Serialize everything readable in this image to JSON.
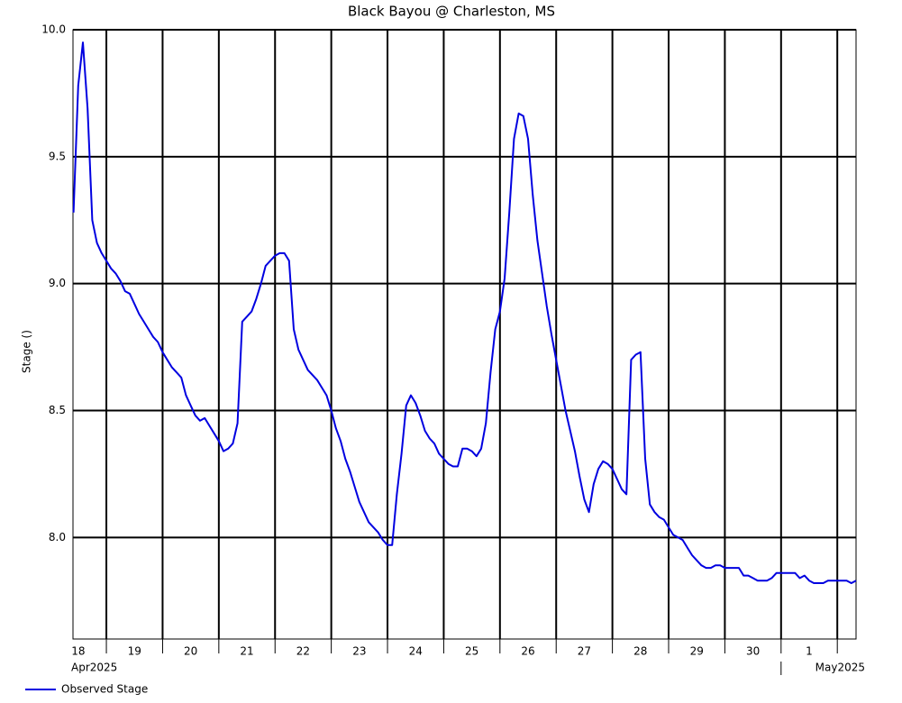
{
  "chart_data": {
    "type": "line",
    "title": "Black Bayou @ Charleston, MS",
    "y_label": "Stage ()",
    "xlim": [
      "2025-04-18T09:45",
      "2025-05-02T08:00"
    ],
    "ylim": [
      7.6,
      10.0
    ],
    "yticks": [
      {
        "value": 8.0,
        "label": "8.0"
      },
      8.5,
      {
        "value": 9.0,
        "label": "9.0"
      },
      9.5,
      {
        "value": 10.0,
        "label": "10.0"
      }
    ],
    "xgrid": [
      "2025-04-19T00:00",
      "2025-04-20T00:00",
      "2025-04-21T00:00",
      "2025-04-22T00:00",
      "2025-04-23T00:00",
      "2025-04-24T00:00",
      "2025-04-25T00:00",
      "2025-04-26T00:00",
      "2025-04-27T00:00",
      "2025-04-28T00:00",
      "2025-04-29T00:00",
      "2025-04-30T00:00",
      "2025-05-01T00:00",
      "2025-05-02T00:00"
    ],
    "xticks": [
      {
        "value": "2025-04-18T12:00",
        "label": "18"
      },
      {
        "value": "2025-04-19T12:00",
        "label": "19"
      },
      {
        "value": "2025-04-20T12:00",
        "label": "20"
      },
      {
        "value": "2025-04-21T12:00",
        "label": "21"
      },
      {
        "value": "2025-04-22T12:00",
        "label": "22"
      },
      {
        "value": "2025-04-23T12:00",
        "label": "23"
      },
      {
        "value": "2025-04-24T12:00",
        "label": "24"
      },
      {
        "value": "2025-04-25T12:00",
        "label": "25"
      },
      {
        "value": "2025-04-26T12:00",
        "label": "26"
      },
      {
        "value": "2025-04-27T12:00",
        "label": "27"
      },
      {
        "value": "2025-04-28T12:00",
        "label": "28"
      },
      {
        "value": "2025-04-29T12:00",
        "label": "29"
      },
      {
        "value": "2025-04-30T12:00",
        "label": "30"
      },
      {
        "value": "2025-05-01T12:00",
        "label": "1"
      }
    ],
    "month_ticks": [
      {
        "value": "2025-04-18T09:45",
        "label": "Apr2025"
      },
      {
        "value": "2025-05-01T00:00",
        "label": "May2025"
      }
    ],
    "grid": true,
    "legend": "bottom-left",
    "x": [
      "2025-04-18T10:00",
      "2025-04-18T12:00",
      "2025-04-18T14:00",
      "2025-04-18T16:00",
      "2025-04-18T18:00",
      "2025-04-18T20:00",
      "2025-04-18T22:00",
      "2025-04-19T00:00",
      "2025-04-19T02:00",
      "2025-04-19T04:00",
      "2025-04-19T06:00",
      "2025-04-19T08:00",
      "2025-04-19T10:00",
      "2025-04-19T12:00",
      "2025-04-19T14:00",
      "2025-04-19T16:00",
      "2025-04-19T18:00",
      "2025-04-19T20:00",
      "2025-04-19T22:00",
      "2025-04-20T00:00",
      "2025-04-20T02:00",
      "2025-04-20T04:00",
      "2025-04-20T06:00",
      "2025-04-20T08:00",
      "2025-04-20T10:00",
      "2025-04-20T12:00",
      "2025-04-20T14:00",
      "2025-04-20T16:00",
      "2025-04-20T18:00",
      "2025-04-20T20:00",
      "2025-04-20T22:00",
      "2025-04-21T00:00",
      "2025-04-21T02:00",
      "2025-04-21T04:00",
      "2025-04-21T06:00",
      "2025-04-21T08:00",
      "2025-04-21T10:00",
      "2025-04-21T12:00",
      "2025-04-21T14:00",
      "2025-04-21T16:00",
      "2025-04-21T18:00",
      "2025-04-21T20:00",
      "2025-04-21T22:00",
      "2025-04-22T00:00",
      "2025-04-22T02:00",
      "2025-04-22T04:00",
      "2025-04-22T06:00",
      "2025-04-22T08:00",
      "2025-04-22T10:00",
      "2025-04-22T12:00",
      "2025-04-22T14:00",
      "2025-04-22T16:00",
      "2025-04-22T18:00",
      "2025-04-22T20:00",
      "2025-04-22T22:00",
      "2025-04-23T00:00",
      "2025-04-23T02:00",
      "2025-04-23T04:00",
      "2025-04-23T06:00",
      "2025-04-23T08:00",
      "2025-04-23T10:00",
      "2025-04-23T12:00",
      "2025-04-23T14:00",
      "2025-04-23T16:00",
      "2025-04-23T18:00",
      "2025-04-23T20:00",
      "2025-04-23T22:00",
      "2025-04-24T00:00",
      "2025-04-24T02:00",
      "2025-04-24T04:00",
      "2025-04-24T06:00",
      "2025-04-24T08:00",
      "2025-04-24T10:00",
      "2025-04-24T12:00",
      "2025-04-24T14:00",
      "2025-04-24T16:00",
      "2025-04-24T18:00",
      "2025-04-24T20:00",
      "2025-04-24T22:00",
      "2025-04-25T00:00",
      "2025-04-25T02:00",
      "2025-04-25T04:00",
      "2025-04-25T06:00",
      "2025-04-25T08:00",
      "2025-04-25T10:00",
      "2025-04-25T12:00",
      "2025-04-25T14:00",
      "2025-04-25T16:00",
      "2025-04-25T18:00",
      "2025-04-25T20:00",
      "2025-04-25T22:00",
      "2025-04-26T00:00",
      "2025-04-26T02:00",
      "2025-04-26T04:00",
      "2025-04-26T06:00",
      "2025-04-26T08:00",
      "2025-04-26T10:00",
      "2025-04-26T12:00",
      "2025-04-26T14:00",
      "2025-04-26T16:00",
      "2025-04-26T18:00",
      "2025-04-26T20:00",
      "2025-04-26T22:00",
      "2025-04-27T00:00",
      "2025-04-27T02:00",
      "2025-04-27T04:00",
      "2025-04-27T06:00",
      "2025-04-27T08:00",
      "2025-04-27T10:00",
      "2025-04-27T12:00",
      "2025-04-27T14:00",
      "2025-04-27T16:00",
      "2025-04-27T18:00",
      "2025-04-27T20:00",
      "2025-04-27T22:00",
      "2025-04-28T00:00",
      "2025-04-28T02:00",
      "2025-04-28T04:00",
      "2025-04-28T06:00",
      "2025-04-28T08:00",
      "2025-04-28T10:00",
      "2025-04-28T12:00",
      "2025-04-28T14:00",
      "2025-04-28T16:00",
      "2025-04-28T18:00",
      "2025-04-28T20:00",
      "2025-04-28T22:00",
      "2025-04-29T00:00",
      "2025-04-29T02:00",
      "2025-04-29T04:00",
      "2025-04-29T06:00",
      "2025-04-29T08:00",
      "2025-04-29T10:00",
      "2025-04-29T12:00",
      "2025-04-29T14:00",
      "2025-04-29T16:00",
      "2025-04-29T18:00",
      "2025-04-29T20:00",
      "2025-04-29T22:00",
      "2025-04-30T00:00",
      "2025-04-30T02:00",
      "2025-04-30T04:00",
      "2025-04-30T06:00",
      "2025-04-30T08:00",
      "2025-04-30T10:00",
      "2025-04-30T12:00",
      "2025-04-30T14:00",
      "2025-04-30T16:00",
      "2025-04-30T18:00",
      "2025-04-30T20:00",
      "2025-04-30T22:00",
      "2025-05-01T00:00",
      "2025-05-01T02:00",
      "2025-05-01T04:00",
      "2025-05-01T06:00",
      "2025-05-01T08:00",
      "2025-05-01T10:00",
      "2025-05-01T12:00",
      "2025-05-01T14:00",
      "2025-05-01T16:00",
      "2025-05-01T18:00",
      "2025-05-01T20:00",
      "2025-05-01T22:00",
      "2025-05-02T00:00",
      "2025-05-02T02:00",
      "2025-05-02T04:00",
      "2025-05-02T06:00",
      "2025-05-02T08:00"
    ],
    "series": [
      {
        "name": "Observed Stage",
        "color": "#0000e0",
        "values": [
          9.28,
          9.78,
          9.95,
          9.69,
          9.25,
          9.16,
          9.12,
          9.09,
          9.06,
          9.04,
          9.01,
          8.97,
          8.96,
          8.92,
          8.88,
          8.85,
          8.82,
          8.79,
          8.77,
          8.73,
          8.7,
          8.67,
          8.65,
          8.63,
          8.56,
          8.52,
          8.48,
          8.46,
          8.47,
          8.44,
          8.41,
          8.38,
          8.34,
          8.35,
          8.37,
          8.45,
          8.85,
          8.87,
          8.89,
          8.94,
          9.0,
          9.07,
          9.09,
          9.11,
          9.12,
          9.12,
          9.09,
          8.82,
          8.74,
          8.7,
          8.66,
          8.64,
          8.62,
          8.59,
          8.56,
          8.5,
          8.43,
          8.38,
          8.31,
          8.26,
          8.2,
          8.14,
          8.1,
          8.06,
          8.04,
          8.02,
          7.99,
          7.97,
          7.97,
          8.17,
          8.33,
          8.52,
          8.56,
          8.53,
          8.48,
          8.42,
          8.39,
          8.37,
          8.33,
          8.31,
          8.29,
          8.28,
          8.28,
          8.35,
          8.35,
          8.34,
          8.32,
          8.35,
          8.45,
          8.65,
          8.82,
          8.89,
          9.02,
          9.28,
          9.57,
          9.67,
          9.66,
          9.57,
          9.35,
          9.17,
          9.04,
          8.91,
          8.8,
          8.7,
          8.6,
          8.5,
          8.42,
          8.34,
          8.24,
          8.15,
          8.1,
          8.21,
          8.27,
          8.3,
          8.29,
          8.27,
          8.23,
          8.19,
          8.17,
          8.7,
          8.72,
          8.73,
          8.31,
          8.13,
          8.1,
          8.08,
          8.07,
          8.04,
          8.01,
          8.0,
          7.99,
          7.96,
          7.93,
          7.91,
          7.89,
          7.88,
          7.88,
          7.89,
          7.89,
          7.88,
          7.88,
          7.88,
          7.88,
          7.85,
          7.85,
          7.84,
          7.83,
          7.83,
          7.83,
          7.84,
          7.86,
          7.86,
          7.86,
          7.86,
          7.86,
          7.84,
          7.85,
          7.83,
          7.82,
          7.82,
          7.82,
          7.83,
          7.83,
          7.83,
          7.83,
          7.83,
          7.82,
          7.83
        ]
      }
    ]
  }
}
